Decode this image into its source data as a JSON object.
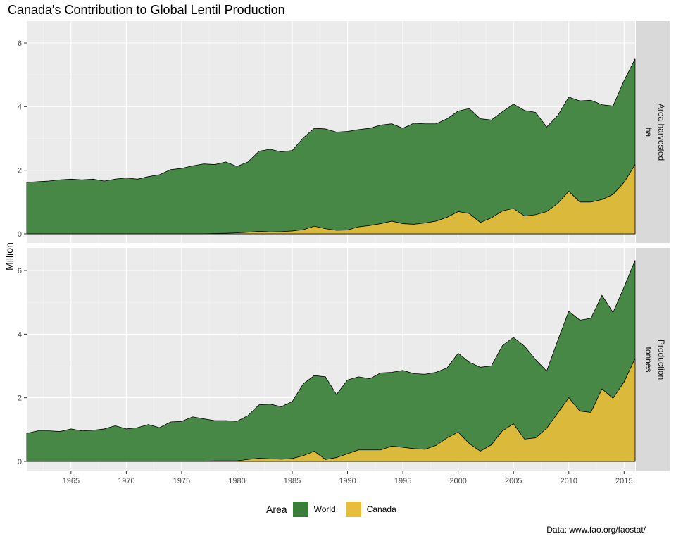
{
  "title": "Canada's Contribution to Global Lentil Production",
  "caption": "Data: www.fao.org/faostat/",
  "colors": {
    "World": "#3a7f37",
    "Canada": "#e8bd3a",
    "panel_bg": "#ebebeb",
    "strip_bg": "#d9d9d9"
  },
  "chart_data": {
    "type": "area",
    "ylabel": "Million",
    "xlabel": "",
    "x_ticks": [
      1965,
      1970,
      1975,
      1980,
      1985,
      1990,
      1995,
      2000,
      2005,
      2010,
      2015
    ],
    "xlim": [
      1961,
      2016
    ],
    "legend": {
      "title": "Area",
      "position": "bottom",
      "entries": [
        "World",
        "Canada"
      ]
    },
    "grid": true,
    "panels": [
      {
        "strip_top": "Area harvested",
        "strip_bottom": "ha",
        "ylim": [
          0,
          6
        ],
        "y_ticks": [
          0,
          2,
          4,
          6
        ],
        "years": [
          1961,
          1962,
          1963,
          1964,
          1965,
          1966,
          1967,
          1968,
          1969,
          1970,
          1971,
          1972,
          1973,
          1974,
          1975,
          1976,
          1977,
          1978,
          1979,
          1980,
          1981,
          1982,
          1983,
          1984,
          1985,
          1986,
          1987,
          1988,
          1989,
          1990,
          1991,
          1992,
          1993,
          1994,
          1995,
          1996,
          1997,
          1998,
          1999,
          2000,
          2001,
          2002,
          2003,
          2004,
          2005,
          2006,
          2007,
          2008,
          2009,
          2010,
          2011,
          2012,
          2013,
          2014,
          2015,
          2016
        ],
        "series": [
          {
            "name": "World",
            "values": [
              1.62,
              1.64,
              1.66,
              1.7,
              1.72,
              1.7,
              1.72,
              1.66,
              1.72,
              1.76,
              1.72,
              1.8,
              1.86,
              2.02,
              2.06,
              2.14,
              2.2,
              2.18,
              2.26,
              2.12,
              2.26,
              2.6,
              2.66,
              2.58,
              2.62,
              3.02,
              3.32,
              3.3,
              3.2,
              3.22,
              3.28,
              3.32,
              3.42,
              3.46,
              3.32,
              3.48,
              3.46,
              3.46,
              3.62,
              3.86,
              3.94,
              3.62,
              3.58,
              3.84,
              4.08,
              3.88,
              3.82,
              3.36,
              3.72,
              4.3,
              4.18,
              4.2,
              4.06,
              4.02,
              4.82,
              5.5
            ]
          },
          {
            "name": "Canada",
            "values": [
              0,
              0,
              0,
              0,
              0,
              0,
              0,
              0,
              0,
              0,
              0,
              0,
              0,
              0,
              0,
              0,
              0,
              0.01,
              0.02,
              0.03,
              0.05,
              0.08,
              0.06,
              0.07,
              0.09,
              0.13,
              0.24,
              0.16,
              0.11,
              0.12,
              0.22,
              0.26,
              0.32,
              0.4,
              0.32,
              0.3,
              0.34,
              0.4,
              0.52,
              0.7,
              0.64,
              0.36,
              0.5,
              0.72,
              0.8,
              0.56,
              0.6,
              0.7,
              0.96,
              1.34,
              1.0,
              1.0,
              1.08,
              1.24,
              1.62,
              2.18
            ]
          }
        ]
      },
      {
        "strip_top": "Production",
        "strip_bottom": "tonnes",
        "ylim": [
          0,
          6.5
        ],
        "y_ticks": [
          0,
          2,
          4,
          6
        ],
        "years": [
          1961,
          1962,
          1963,
          1964,
          1965,
          1966,
          1967,
          1968,
          1969,
          1970,
          1971,
          1972,
          1973,
          1974,
          1975,
          1976,
          1977,
          1978,
          1979,
          1980,
          1981,
          1982,
          1983,
          1984,
          1985,
          1986,
          1987,
          1988,
          1989,
          1990,
          1991,
          1992,
          1993,
          1994,
          1995,
          1996,
          1997,
          1998,
          1999,
          2000,
          2001,
          2002,
          2003,
          2004,
          2005,
          2006,
          2007,
          2008,
          2009,
          2010,
          2011,
          2012,
          2013,
          2014,
          2015,
          2016
        ],
        "series": [
          {
            "name": "World",
            "values": [
              0.88,
              0.96,
              0.96,
              0.94,
              1.02,
              0.96,
              0.98,
              1.02,
              1.12,
              1.02,
              1.06,
              1.16,
              1.06,
              1.24,
              1.26,
              1.4,
              1.34,
              1.28,
              1.28,
              1.26,
              1.44,
              1.78,
              1.8,
              1.72,
              1.88,
              2.44,
              2.7,
              2.66,
              2.1,
              2.56,
              2.66,
              2.6,
              2.78,
              2.8,
              2.86,
              2.76,
              2.74,
              2.8,
              2.94,
              3.4,
              3.12,
              2.96,
              3.0,
              3.64,
              3.9,
              3.62,
              3.2,
              2.84,
              3.8,
              4.72,
              4.44,
              4.5,
              5.22,
              4.68,
              5.48,
              6.32
            ]
          },
          {
            "name": "Canada",
            "values": [
              0,
              0,
              0,
              0,
              0,
              0,
              0,
              0,
              0,
              0,
              0,
              0,
              0,
              0,
              0,
              0,
              0,
              0.02,
              0.02,
              0.02,
              0.06,
              0.1,
              0.08,
              0.07,
              0.09,
              0.18,
              0.32,
              0.06,
              0.12,
              0.24,
              0.36,
              0.36,
              0.36,
              0.48,
              0.44,
              0.4,
              0.38,
              0.5,
              0.74,
              0.92,
              0.56,
              0.32,
              0.52,
              0.96,
              1.18,
              0.7,
              0.74,
              1.04,
              1.52,
              2.0,
              1.58,
              1.54,
              2.28,
              1.98,
              2.5,
              3.24
            ]
          }
        ]
      }
    ]
  }
}
